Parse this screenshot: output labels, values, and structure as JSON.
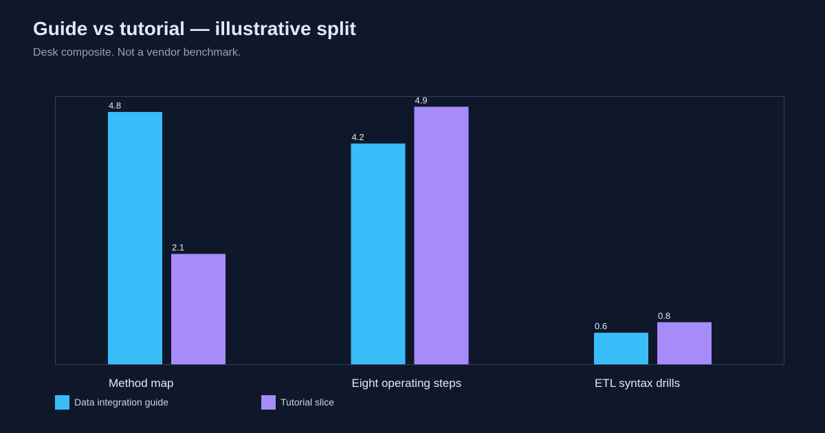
{
  "title": "Guide vs tutorial — illustrative split",
  "subtitle": "Desk composite. Not a vendor benchmark.",
  "colors": {
    "background": "#0f172a",
    "plot_border": "#334155",
    "series_1": "#38bdf8",
    "series_2": "#a78bfa",
    "label_text": "#e2e8f0",
    "category_text": "#e2e8f0"
  },
  "chart_data": {
    "type": "bar",
    "categories": [
      "Method map",
      "Eight operating steps",
      "ETL syntax drills"
    ],
    "series": [
      {
        "name": "Data integration guide",
        "values": [
          4.8,
          4.2,
          0.6
        ]
      },
      {
        "name": "Tutorial slice",
        "values": [
          2.1,
          4.9,
          0.8
        ]
      }
    ],
    "title": "Guide vs tutorial — illustrative split",
    "subtitle": "Desk composite. Not a vendor benchmark.",
    "xlabel": "",
    "ylabel": "",
    "ylim": [
      0,
      5.1
    ],
    "grid": false,
    "legend": "bottom-left"
  }
}
